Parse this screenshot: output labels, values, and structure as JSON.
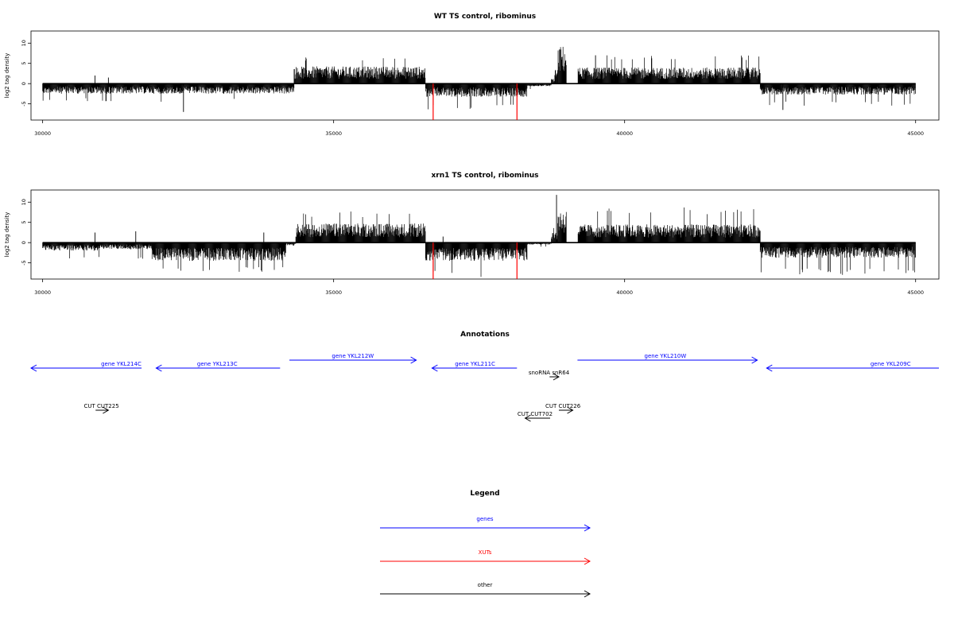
{
  "chart_data": [
    {
      "type": "bar",
      "title": "WT TS control, ribominus",
      "ylabel": "log2 tag density",
      "xlabel": "",
      "xlim": [
        29800,
        45400
      ],
      "ylim": [
        -9,
        13
      ],
      "xticks": [
        30000,
        35000,
        40000,
        45000
      ],
      "yticks": [
        -5,
        0,
        5,
        10
      ],
      "grid": false,
      "baseline_color": "#000000",
      "bar_color": "#000000",
      "highlight_color": "#ff0000",
      "segments": [
        {
          "x_start": 30000,
          "x_end": 34320,
          "sign": -1,
          "typical": 2,
          "max": 4.5
        },
        {
          "x_start": 34320,
          "x_end": 36580,
          "sign": 1,
          "typical": 3.4,
          "max": 6.5
        },
        {
          "x_start": 36580,
          "x_end": 38330,
          "sign": -1,
          "typical": 2.6,
          "max": 6.5
        },
        {
          "x_start": 38330,
          "x_end": 38740,
          "sign": -1,
          "typical": 0.5,
          "max": 1.5
        },
        {
          "x_start": 38740,
          "x_end": 38800,
          "sign": 1,
          "typical": 1,
          "max": 2
        },
        {
          "x_start": 38800,
          "x_end": 38850,
          "sign": 1,
          "typical": 3,
          "max": 3.5
        },
        {
          "x_start": 38850,
          "x_end": 39000,
          "sign": 1,
          "typical": 7.5,
          "max": 12
        },
        {
          "x_start": 39200,
          "x_end": 42330,
          "sign": 1,
          "typical": 3.2,
          "max": 7.2
        },
        {
          "x_start": 42330,
          "x_end": 45000,
          "sign": -1,
          "typical": 2.2,
          "max": 5.5
        }
      ],
      "spikes": [
        {
          "x": 30900,
          "y": 2
        },
        {
          "x": 31130,
          "y": 1.5
        },
        {
          "x": 32420,
          "y": -7
        },
        {
          "x": 39500,
          "y": 7
        },
        {
          "x": 42720,
          "y": -6.5
        }
      ],
      "highlighted_bars": [
        {
          "x": 36710,
          "y": -9
        },
        {
          "x": 38150,
          "y": -9
        }
      ]
    },
    {
      "type": "bar",
      "title": "xrn1 TS control, ribominus",
      "ylabel": "log2 tag density",
      "xlabel": "",
      "xlim": [
        29800,
        45400
      ],
      "ylim": [
        -9,
        13
      ],
      "xticks": [
        30000,
        35000,
        40000,
        45000
      ],
      "yticks": [
        -5,
        0,
        5,
        10
      ],
      "grid": false,
      "baseline_color": "#000000",
      "bar_color": "#000000",
      "highlight_color": "#ff0000",
      "segments": [
        {
          "x_start": 30000,
          "x_end": 31000,
          "sign": -1,
          "typical": 1.6,
          "max": 4
        },
        {
          "x_start": 31000,
          "x_end": 31880,
          "sign": -1,
          "typical": 1.3,
          "max": 4
        },
        {
          "x_start": 31880,
          "x_end": 34180,
          "sign": -1,
          "typical": 3.6,
          "max": 7.5
        },
        {
          "x_start": 34180,
          "x_end": 34350,
          "sign": -1,
          "typical": 0.6,
          "max": 2
        },
        {
          "x_start": 34350,
          "x_end": 36580,
          "sign": 1,
          "typical": 3.8,
          "max": 7.8
        },
        {
          "x_start": 36580,
          "x_end": 38330,
          "sign": -1,
          "typical": 3.6,
          "max": 8.5
        },
        {
          "x_start": 38330,
          "x_end": 38740,
          "sign": -1,
          "typical": 0.4,
          "max": 1.2
        },
        {
          "x_start": 38740,
          "x_end": 38850,
          "sign": 1,
          "typical": 2.2,
          "max": 4
        },
        {
          "x_start": 38850,
          "x_end": 39000,
          "sign": 1,
          "typical": 6.5,
          "max": 12
        },
        {
          "x_start": 39200,
          "x_end": 42330,
          "sign": 1,
          "typical": 3.6,
          "max": 8.8
        },
        {
          "x_start": 42330,
          "x_end": 45000,
          "sign": -1,
          "typical": 3,
          "max": 8
        }
      ],
      "spikes": [
        {
          "x": 30900,
          "y": 2.5
        },
        {
          "x": 31600,
          "y": 2.8
        },
        {
          "x": 33800,
          "y": 2.5
        },
        {
          "x": 36880,
          "y": 1.5
        },
        {
          "x": 38830,
          "y": 11.8
        }
      ],
      "highlighted_bars": [
        {
          "x": 36710,
          "y": -9
        },
        {
          "x": 38150,
          "y": -9
        }
      ]
    }
  ],
  "annotations": {
    "title": "Annotations",
    "genes": [
      {
        "label": "gene YKL214C",
        "x1": 29300,
        "x2": 31700,
        "direction": "left",
        "row": 1,
        "label_x": 31350
      },
      {
        "label": "gene YKL213C",
        "x1": 31950,
        "x2": 34080,
        "direction": "left",
        "row": 1,
        "label_x": 33000
      },
      {
        "label": "gene YKL212W",
        "x1": 34240,
        "x2": 36420,
        "direction": "right",
        "row": 0,
        "label_x": 35330
      },
      {
        "label": "gene YKL211C",
        "x1": 36690,
        "x2": 38150,
        "direction": "left",
        "row": 1,
        "label_x": 37430
      },
      {
        "label": "gene YKL210W",
        "x1": 39190,
        "x2": 42280,
        "direction": "right",
        "row": 0,
        "label_x": 40700
      },
      {
        "label": "gene YKL209C",
        "x1": 42440,
        "x2": 45700,
        "direction": "left",
        "row": 1,
        "label_x": 44570
      }
    ],
    "gene_gap_segment": {
      "x1": 29300,
      "x2": 30650
    },
    "others": [
      {
        "label": "snoRNA snR64",
        "x1": 38710,
        "x2": 38870,
        "direction": "right",
        "label_x": 38700
      },
      {
        "label": "CUT CUT225",
        "x1": 30910,
        "x2": 31130,
        "direction": "right",
        "label_x": 31010
      },
      {
        "label": "CUT CUT226",
        "x1": 38870,
        "x2": 39110,
        "direction": "right",
        "label_x": 38940
      },
      {
        "label": "CUT CUT702",
        "x1": 38290,
        "x2": 38720,
        "direction": "left",
        "label_x": 38460
      }
    ]
  },
  "legend": {
    "title": "Legend",
    "items": [
      {
        "label": "genes",
        "color": "#0000ff"
      },
      {
        "label": "XUTs",
        "color": "#ff0000"
      },
      {
        "label": "other",
        "color": "#000000"
      }
    ]
  },
  "colors": {
    "gene": "#0000ff",
    "xut": "#ff0000",
    "other": "#000000"
  }
}
